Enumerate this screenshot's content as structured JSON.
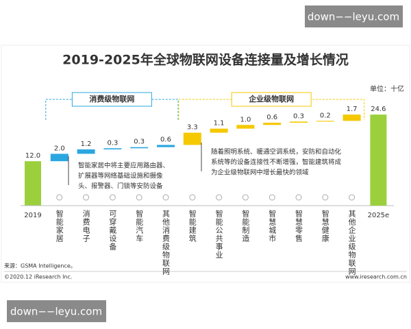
{
  "watermark_top": "down−−leyu.com",
  "watermark_bottom": "down−−leyu.com",
  "chart_data": {
    "type": "waterfall",
    "title": "2019-2025年全球物联网设备连接量及增长情况",
    "unit": "单位：十亿",
    "total_color": "#9bd03c",
    "start": {
      "category": "2019",
      "value": 12.0,
      "value_label": "12.0"
    },
    "groups": [
      {
        "name": "消费级物联网",
        "color": "#2aa7e0",
        "categories": [
          "智能家居",
          "消费电子",
          "可穿戴设备",
          "智能汽车",
          "其他消费级物联网"
        ],
        "values": [
          2.0,
          1.2,
          0.3,
          0.3,
          0.6
        ],
        "value_labels": [
          "2.0",
          "1.2",
          "0.3",
          "0.3",
          "0.6"
        ],
        "note": [
          "智能家居中将主要应用路由器、",
          "扩展器等网络基础设施和摄像",
          "头、报警器、门锁等安防设备"
        ]
      },
      {
        "name": "企业级物联网",
        "color": "#f5c800",
        "categories": [
          "智能建筑",
          "智能公共事业",
          "智能制造",
          "智慧城市",
          "智慧零售",
          "智慧健康",
          "其他企业级物联网"
        ],
        "values": [
          3.3,
          1.1,
          1.0,
          0.6,
          0.3,
          0.2,
          1.7
        ],
        "value_labels": [
          "3.3",
          "1.1",
          "1.0",
          "0.6",
          "0.3",
          "0.2",
          "1.7"
        ],
        "note": [
          "随着照明系统、暖通空调系统，安防和自动化",
          "系统等的设备连接性不断增强，智能建筑将成",
          "为企业级物联网中增长最快的领域"
        ]
      }
    ],
    "end": {
      "category": "2025e",
      "value": 24.6,
      "value_label": "24.6"
    },
    "source": "来源：GSMA Intelligence。",
    "copyright": "©2020.12 iResearch Inc.",
    "website": "www.iresearch.com.cn"
  }
}
